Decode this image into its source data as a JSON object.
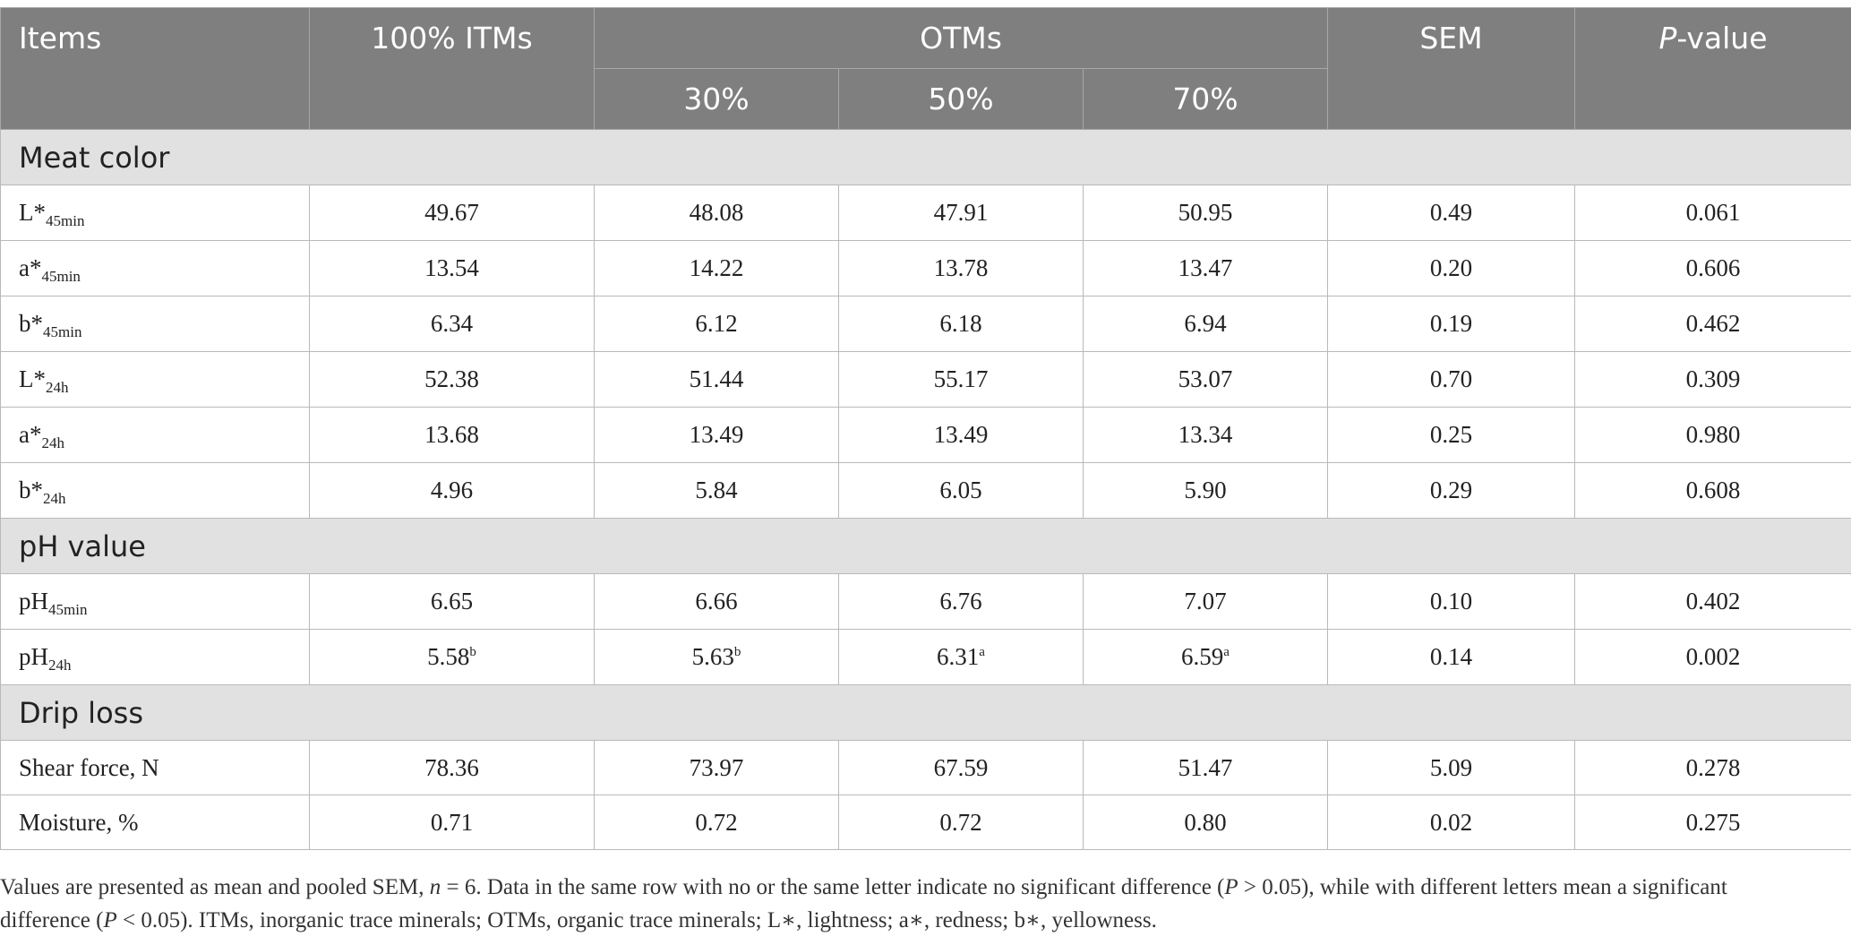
{
  "header": {
    "items": "Items",
    "itms": "100% ITMs",
    "otms": "OTMs",
    "sem": "SEM",
    "pvalue_italic": "P",
    "pvalue_rest": "-value",
    "sub": [
      "30%",
      "50%",
      "70%"
    ]
  },
  "sections": [
    {
      "title": "Meat color",
      "rows": [
        {
          "base": "L*",
          "sub": "45min",
          "suffix": "",
          "cells": [
            {
              "v": "49.67",
              "sup": ""
            },
            {
              "v": "48.08",
              "sup": ""
            },
            {
              "v": "47.91",
              "sup": ""
            },
            {
              "v": "50.95",
              "sup": ""
            }
          ],
          "sem": "0.49",
          "p": "0.061"
        },
        {
          "base": "a*",
          "sub": "45min",
          "suffix": "",
          "cells": [
            {
              "v": "13.54",
              "sup": ""
            },
            {
              "v": "14.22",
              "sup": ""
            },
            {
              "v": "13.78",
              "sup": ""
            },
            {
              "v": "13.47",
              "sup": ""
            }
          ],
          "sem": "0.20",
          "p": "0.606"
        },
        {
          "base": "b*",
          "sub": "45min",
          "suffix": "",
          "cells": [
            {
              "v": "6.34",
              "sup": ""
            },
            {
              "v": "6.12",
              "sup": ""
            },
            {
              "v": "6.18",
              "sup": ""
            },
            {
              "v": "6.94",
              "sup": ""
            }
          ],
          "sem": "0.19",
          "p": "0.462"
        },
        {
          "base": "L*",
          "sub": "24h",
          "suffix": "",
          "cells": [
            {
              "v": "52.38",
              "sup": ""
            },
            {
              "v": "51.44",
              "sup": ""
            },
            {
              "v": "55.17",
              "sup": ""
            },
            {
              "v": "53.07",
              "sup": ""
            }
          ],
          "sem": "0.70",
          "p": "0.309"
        },
        {
          "base": "a*",
          "sub": "24h",
          "suffix": "",
          "cells": [
            {
              "v": "13.68",
              "sup": ""
            },
            {
              "v": "13.49",
              "sup": ""
            },
            {
              "v": "13.49",
              "sup": ""
            },
            {
              "v": "13.34",
              "sup": ""
            }
          ],
          "sem": "0.25",
          "p": "0.980"
        },
        {
          "base": "b*",
          "sub": "24h",
          "suffix": "",
          "cells": [
            {
              "v": "4.96",
              "sup": ""
            },
            {
              "v": "5.84",
              "sup": ""
            },
            {
              "v": "6.05",
              "sup": ""
            },
            {
              "v": "5.90",
              "sup": ""
            }
          ],
          "sem": "0.29",
          "p": "0.608"
        }
      ]
    },
    {
      "title": "pH value",
      "rows": [
        {
          "base": "pH",
          "sub": "45min",
          "suffix": "",
          "cells": [
            {
              "v": "6.65",
              "sup": ""
            },
            {
              "v": "6.66",
              "sup": ""
            },
            {
              "v": "6.76",
              "sup": ""
            },
            {
              "v": "7.07",
              "sup": ""
            }
          ],
          "sem": "0.10",
          "p": "0.402"
        },
        {
          "base": "pH",
          "sub": "24h",
          "suffix": "",
          "cells": [
            {
              "v": "5.58",
              "sup": "b"
            },
            {
              "v": "5.63",
              "sup": "b"
            },
            {
              "v": "6.31",
              "sup": "a"
            },
            {
              "v": "6.59",
              "sup": "a"
            }
          ],
          "sem": "0.14",
          "p": "0.002"
        }
      ]
    },
    {
      "title": "Drip loss",
      "rows": [
        {
          "base": "Shear force, N",
          "sub": "",
          "suffix": "",
          "cells": [
            {
              "v": "78.36",
              "sup": ""
            },
            {
              "v": "73.97",
              "sup": ""
            },
            {
              "v": "67.59",
              "sup": ""
            },
            {
              "v": "51.47",
              "sup": ""
            }
          ],
          "sem": "5.09",
          "p": "0.278"
        },
        {
          "base": "Moisture, %",
          "sub": "",
          "suffix": "",
          "cells": [
            {
              "v": "0.71",
              "sup": ""
            },
            {
              "v": "0.72",
              "sup": ""
            },
            {
              "v": "0.72",
              "sup": ""
            },
            {
              "v": "0.80",
              "sup": ""
            }
          ],
          "sem": "0.02",
          "p": "0.275"
        }
      ]
    }
  ],
  "footnote": {
    "line1_a": "Values are presented as mean and pooled SEM, ",
    "n_italic": "n",
    "line1_b": " = 6. Data in the same row with no or the same letter indicate no significant difference (",
    "p1_italic": "P",
    "line1_c": " > 0.05), while with different letters mean a significant",
    "line2_a": "difference (",
    "p2_italic": "P",
    "line2_b": " < 0.05). ITMs, inorganic trace minerals; OTMs, organic trace minerals; L∗, lightness; a∗, redness; b∗, yellowness."
  }
}
